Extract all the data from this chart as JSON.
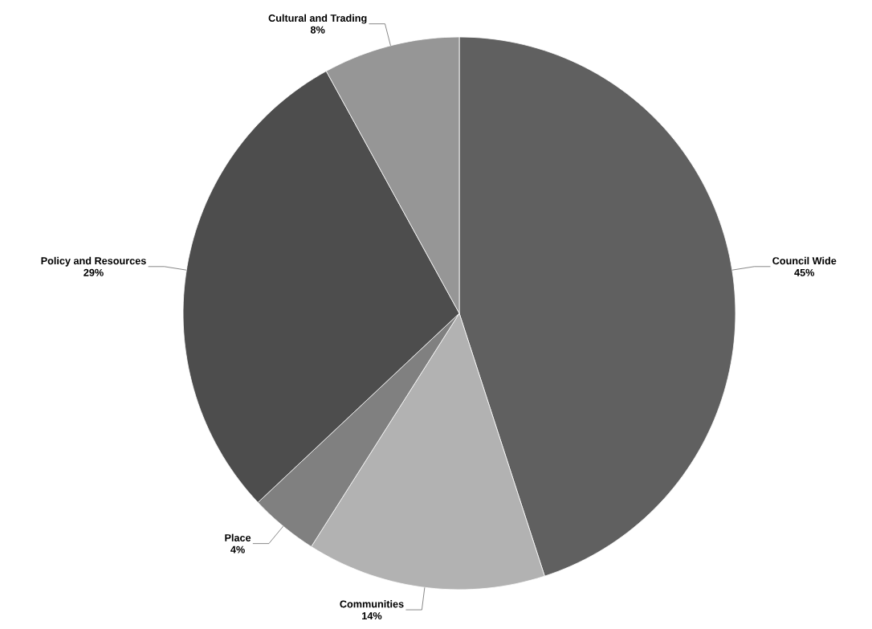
{
  "chart_data": {
    "type": "pie",
    "categories": [
      "Council Wide",
      "Communities",
      "Place",
      "Policy and Resources",
      "Cultural and Trading"
    ],
    "values": [
      45,
      14,
      4,
      29,
      8
    ],
    "value_labels": [
      "45%",
      "14%",
      "4%",
      "29%",
      "8%"
    ],
    "colors": [
      "#606060",
      "#b2b2b2",
      "#808080",
      "#4d4d4d",
      "#969696"
    ]
  }
}
